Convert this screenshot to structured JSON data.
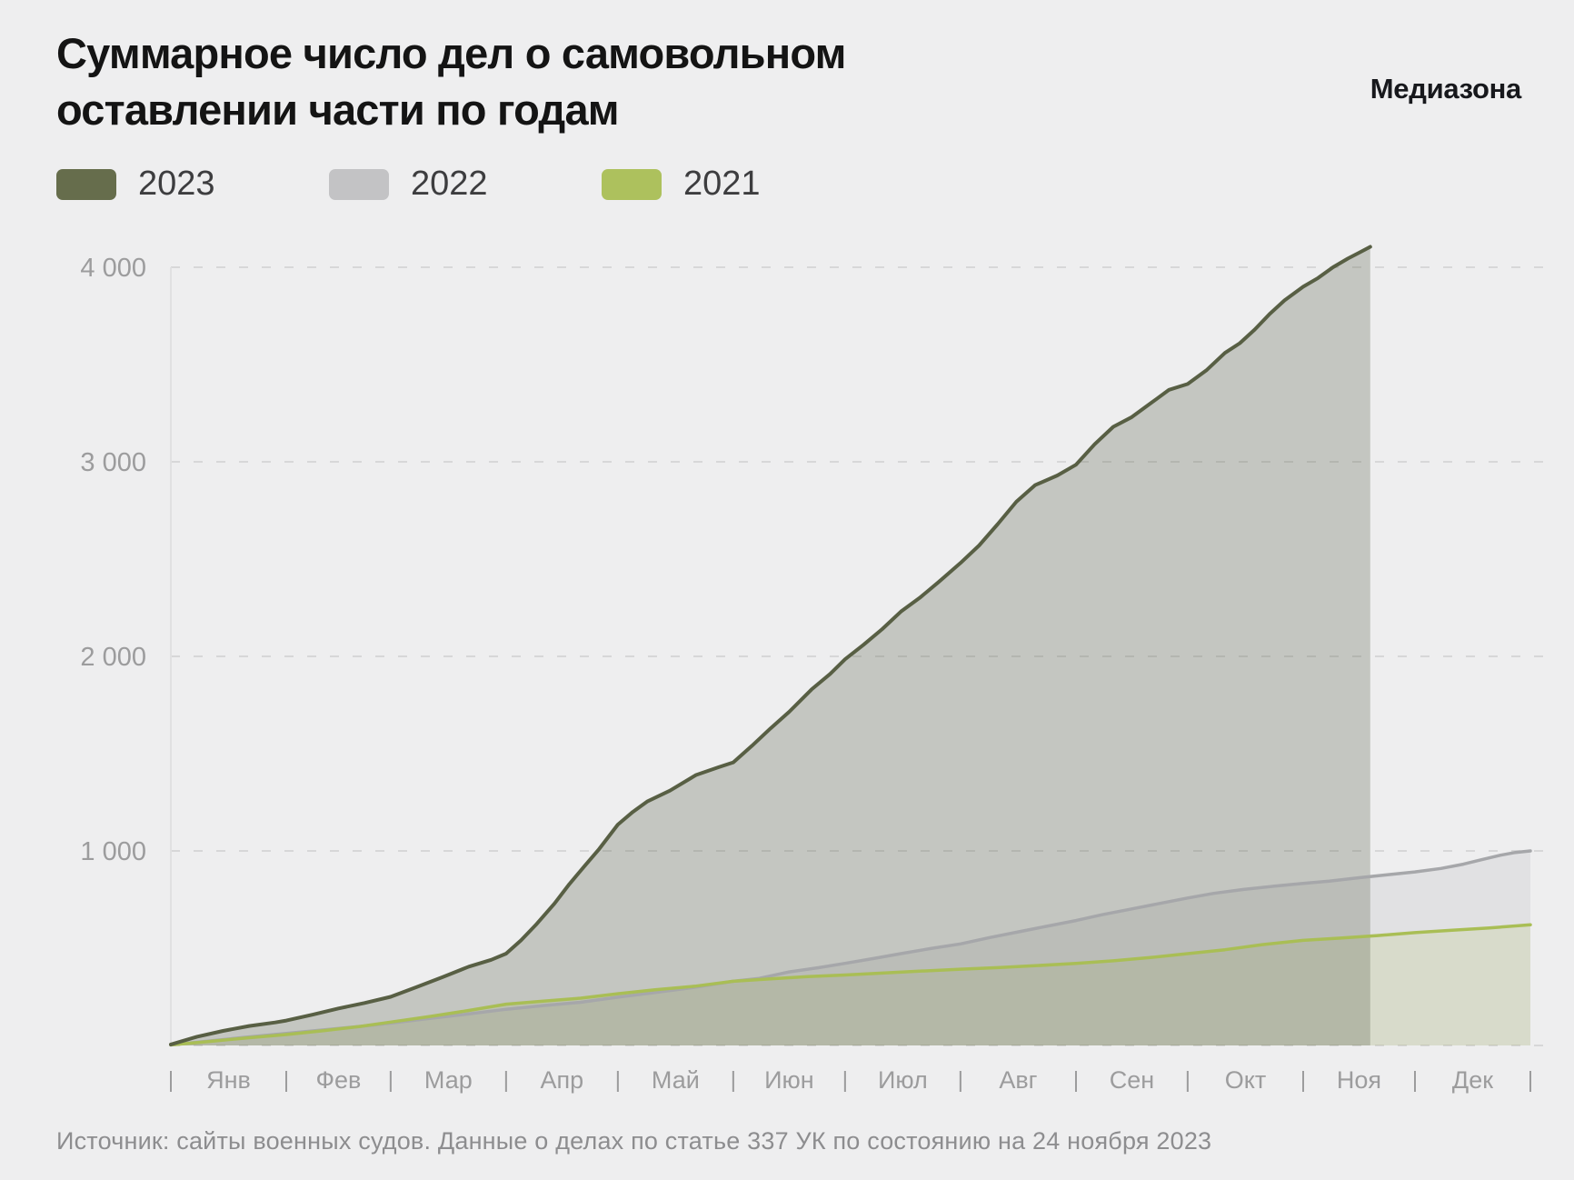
{
  "header": {
    "title_line1": "Суммарное число дел о самовольном",
    "title_line2": "оставлении части по годам",
    "logo": "Медиазона"
  },
  "legend": [
    {
      "label": "2023",
      "color": "#666d4c"
    },
    {
      "label": "2022",
      "color": "#c3c3c5"
    },
    {
      "label": "2021",
      "color": "#adc15d"
    }
  ],
  "footer": {
    "source": "Источник: сайты военных судов. Данные о делах по статье 337 УК по состоянию на 24 ноября 2023"
  },
  "colors": {
    "background": "#eeeeef",
    "grid": "#d7d7d8",
    "axis_border": "#e0e0e1",
    "axis_text": "#9c9c9d",
    "title_text": "#141414",
    "source_text": "#8d8d8f"
  },
  "chart_data": {
    "type": "area",
    "title": "Суммарное число дел о самовольном оставлении части по годам",
    "xlabel": "",
    "ylabel": "",
    "grid": "dashed-horizontal",
    "legend_position": "top-left",
    "x_axis": {
      "months": [
        "Янв",
        "Фев",
        "Мар",
        "Апр",
        "Май",
        "Июн",
        "Июл",
        "Авг",
        "Сен",
        "Окт",
        "Ноя",
        "Дек"
      ],
      "month_days": [
        31,
        28,
        31,
        30,
        31,
        30,
        31,
        31,
        30,
        31,
        30,
        31
      ],
      "total_days": 365
    },
    "y_axis": {
      "ticks": [
        1000,
        2000,
        3000,
        4000
      ],
      "tick_labels": [
        "1 000",
        "2 000",
        "3 000",
        "4 000"
      ],
      "gridlines_at": [
        0,
        1000,
        2000,
        3000,
        4000
      ],
      "ylim": [
        0,
        4300
      ]
    },
    "series": [
      {
        "name": "2022",
        "line_color": "#a6a7aa",
        "fill_color": "#97979b",
        "fill_opacity": 0.14,
        "line_width": 3.5,
        "end_value": 1000,
        "points": [
          [
            0,
            3
          ],
          [
            10,
            22
          ],
          [
            20,
            42
          ],
          [
            31,
            62
          ],
          [
            41,
            80
          ],
          [
            51,
            98
          ],
          [
            59,
            115
          ],
          [
            70,
            140
          ],
          [
            80,
            162
          ],
          [
            90,
            186
          ],
          [
            100,
            205
          ],
          [
            110,
            222
          ],
          [
            120,
            248
          ],
          [
            130,
            272
          ],
          [
            141,
            300
          ],
          [
            151,
            330
          ],
          [
            158,
            345
          ],
          [
            166,
            378
          ],
          [
            174,
            400
          ],
          [
            181,
            422
          ],
          [
            189,
            448
          ],
          [
            196,
            472
          ],
          [
            204,
            498
          ],
          [
            212,
            522
          ],
          [
            220,
            555
          ],
          [
            227,
            582
          ],
          [
            235,
            612
          ],
          [
            243,
            642
          ],
          [
            250,
            672
          ],
          [
            258,
            702
          ],
          [
            265,
            728
          ],
          [
            273,
            758
          ],
          [
            280,
            782
          ],
          [
            288,
            802
          ],
          [
            296,
            818
          ],
          [
            304,
            833
          ],
          [
            311,
            845
          ],
          [
            319,
            862
          ],
          [
            326,
            876
          ],
          [
            334,
            892
          ],
          [
            341,
            910
          ],
          [
            347,
            932
          ],
          [
            352,
            955
          ],
          [
            357,
            978
          ],
          [
            361,
            992
          ],
          [
            365,
            1000
          ]
        ]
      },
      {
        "name": "2021",
        "line_color": "#a9be55",
        "fill_color": "#b0c360",
        "fill_opacity": 0.18,
        "line_width": 3.5,
        "end_value": 620,
        "points": [
          [
            0,
            3
          ],
          [
            10,
            20
          ],
          [
            20,
            38
          ],
          [
            31,
            56
          ],
          [
            41,
            76
          ],
          [
            51,
            98
          ],
          [
            59,
            120
          ],
          [
            70,
            150
          ],
          [
            80,
            180
          ],
          [
            90,
            212
          ],
          [
            100,
            228
          ],
          [
            110,
            243
          ],
          [
            120,
            266
          ],
          [
            130,
            286
          ],
          [
            141,
            305
          ],
          [
            151,
            330
          ],
          [
            161,
            342
          ],
          [
            171,
            354
          ],
          [
            181,
            362
          ],
          [
            191,
            372
          ],
          [
            201,
            382
          ],
          [
            212,
            392
          ],
          [
            222,
            400
          ],
          [
            232,
            410
          ],
          [
            243,
            422
          ],
          [
            253,
            435
          ],
          [
            263,
            452
          ],
          [
            273,
            472
          ],
          [
            283,
            492
          ],
          [
            293,
            518
          ],
          [
            304,
            540
          ],
          [
            314,
            552
          ],
          [
            324,
            565
          ],
          [
            334,
            580
          ],
          [
            344,
            592
          ],
          [
            354,
            604
          ],
          [
            365,
            620
          ]
        ]
      },
      {
        "name": "2023",
        "line_color": "#585f44",
        "fill_color": "#565e46",
        "fill_opacity": 0.27,
        "line_width": 4,
        "end_value": 4105,
        "points": [
          [
            0,
            5
          ],
          [
            7,
            45
          ],
          [
            14,
            75
          ],
          [
            21,
            100
          ],
          [
            28,
            118
          ],
          [
            31,
            128
          ],
          [
            38,
            158
          ],
          [
            45,
            190
          ],
          [
            52,
            218
          ],
          [
            59,
            250
          ],
          [
            66,
            300
          ],
          [
            73,
            352
          ],
          [
            80,
            405
          ],
          [
            86,
            440
          ],
          [
            90,
            472
          ],
          [
            94,
            540
          ],
          [
            98,
            620
          ],
          [
            103,
            730
          ],
          [
            107,
            830
          ],
          [
            111,
            920
          ],
          [
            115,
            1010
          ],
          [
            120,
            1135
          ],
          [
            124,
            1200
          ],
          [
            128,
            1255
          ],
          [
            134,
            1310
          ],
          [
            141,
            1390
          ],
          [
            147,
            1430
          ],
          [
            151,
            1455
          ],
          [
            156,
            1540
          ],
          [
            161,
            1630
          ],
          [
            166,
            1715
          ],
          [
            172,
            1830
          ],
          [
            177,
            1910
          ],
          [
            181,
            1985
          ],
          [
            186,
            2060
          ],
          [
            191,
            2140
          ],
          [
            196,
            2230
          ],
          [
            201,
            2300
          ],
          [
            206,
            2380
          ],
          [
            212,
            2480
          ],
          [
            217,
            2570
          ],
          [
            222,
            2680
          ],
          [
            227,
            2795
          ],
          [
            232,
            2880
          ],
          [
            238,
            2930
          ],
          [
            243,
            2985
          ],
          [
            248,
            3090
          ],
          [
            253,
            3180
          ],
          [
            258,
            3230
          ],
          [
            263,
            3300
          ],
          [
            268,
            3370
          ],
          [
            273,
            3400
          ],
          [
            278,
            3470
          ],
          [
            283,
            3560
          ],
          [
            287,
            3610
          ],
          [
            291,
            3680
          ],
          [
            295,
            3760
          ],
          [
            299,
            3830
          ],
          [
            304,
            3900
          ],
          [
            308,
            3945
          ],
          [
            312,
            4000
          ],
          [
            316,
            4045
          ],
          [
            319,
            4075
          ],
          [
            322,
            4105
          ]
        ]
      }
    ]
  }
}
